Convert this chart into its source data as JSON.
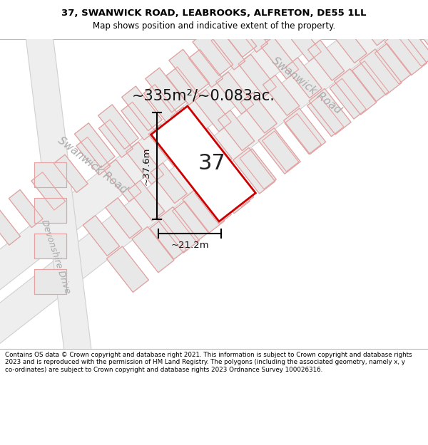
{
  "title_line1": "37, SWANWICK ROAD, LEABROOKS, ALFRETON, DE55 1LL",
  "title_line2": "Map shows position and indicative extent of the property.",
  "footer": "Contains OS data © Crown copyright and database right 2021. This information is subject to Crown copyright and database rights 2023 and is reproduced with the permission of HM Land Registry. The polygons (including the associated geometry, namely x, y co-ordinates) are subject to Crown copyright and database rights 2023 Ordnance Survey 100026316.",
  "area_text": "~335m²/~0.083ac.",
  "number_text": "37",
  "dim_width": "~21.2m",
  "dim_height": "~37.6m",
  "road_label_sw1": "Swanwick Road",
  "road_label_sw2": "Swanwick Road",
  "road_label_dev": "Devonshire Drive",
  "map_bg": "#ffffff",
  "plot_color": "#cc0000",
  "building_fill": "#e8e8e8",
  "building_edge": "#c8c8c8",
  "lot_line_color": "#e8a0a0",
  "title_fontsize": 9.5,
  "title2_fontsize": 8.5,
  "footer_fontsize": 6.3,
  "area_fontsize": 15,
  "number_fontsize": 22,
  "dim_fontsize": 9.5,
  "road_label_fontsize": 11,
  "dev_label_fontsize": 9
}
